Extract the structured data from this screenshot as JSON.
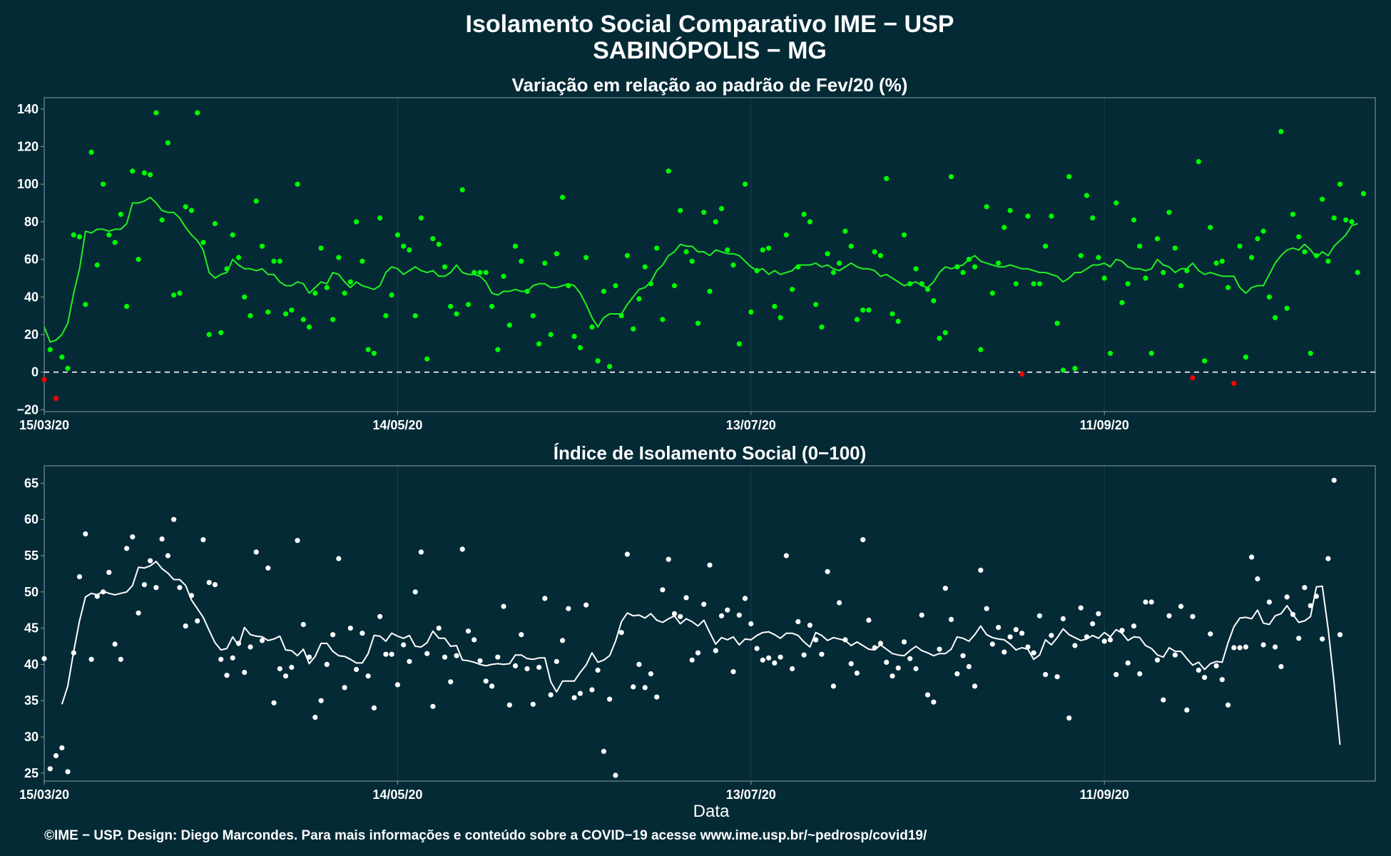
{
  "header": {
    "title_line1": "Isolamento Social Comparativo IME − USP",
    "title_line2": "SABINÓPOLIS − MG"
  },
  "footer": {
    "credit": "©IME − USP. Design: Diego Marcondes. Para mais informações e conteúdo sobre a COVID−19 acesse www.ime.usp.br/~pedrosp/covid19/"
  },
  "colors": {
    "background": "#042a36",
    "grid": "#143c48",
    "positive_points": "#00ff00",
    "negative_points": "#ff0000",
    "top_line": "#22ee22",
    "bottom_points": "#ffffff",
    "bottom_line": "#ffffff",
    "zero_line": "#ffffff"
  },
  "chart_data": [
    {
      "type": "scatter",
      "title": "Variação em relação ao padrão de Fev/20 (%)",
      "xlabel": "",
      "ylabel": "",
      "x_start_date": "15/03/20",
      "x_tick_labels": [
        "15/03/20",
        "14/05/20",
        "13/07/20",
        "11/09/20"
      ],
      "x_tick_days": [
        0,
        60,
        120,
        180
      ],
      "xlim_days": [
        0,
        226
      ],
      "y_ticks": [
        -20,
        0,
        20,
        40,
        60,
        80,
        100,
        120,
        140
      ],
      "ylim": [
        -21,
        146
      ],
      "reference_line": {
        "y": 0,
        "style": "dashed"
      },
      "grid": true,
      "series": [
        {
          "kind": "points",
          "values": [
            -4,
            12,
            -14,
            8,
            2,
            73,
            72,
            36,
            117,
            57,
            100,
            73,
            69,
            84,
            35,
            107,
            60,
            106,
            105,
            138,
            81,
            122,
            41,
            42,
            88,
            86,
            138,
            69,
            20,
            79,
            21,
            55,
            73,
            61,
            40,
            30,
            91,
            67,
            32,
            59,
            59,
            31,
            33,
            100,
            28,
            24,
            42,
            66,
            45,
            28,
            61,
            42,
            48,
            80,
            59,
            12,
            10,
            82,
            30,
            41,
            73,
            67,
            65,
            30,
            82,
            7,
            71,
            68,
            56,
            35,
            31,
            97,
            36,
            53,
            53,
            53,
            35,
            12,
            51,
            25,
            67,
            59,
            43,
            30,
            15,
            58,
            20,
            63,
            93,
            46,
            19,
            13,
            61,
            24,
            6,
            43,
            3,
            46,
            30,
            62,
            23,
            39,
            56,
            47,
            66,
            28,
            107,
            46,
            86,
            64,
            59,
            26,
            85,
            43,
            80,
            87,
            65,
            57,
            15,
            100,
            32,
            54,
            65,
            66,
            35,
            29,
            73,
            44,
            56,
            84,
            80,
            36,
            24,
            63,
            53,
            58,
            75,
            67,
            28,
            33,
            33,
            64,
            62,
            103,
            31,
            27,
            73,
            47,
            55,
            47,
            44,
            38,
            18,
            21,
            104,
            56,
            53,
            60,
            56,
            12,
            88,
            42,
            58,
            77,
            86,
            47,
            -1,
            83,
            47,
            47,
            67,
            83,
            26,
            1,
            104,
            2,
            62,
            94,
            82,
            61,
            50,
            10,
            90,
            37,
            47,
            81,
            67,
            50,
            10,
            71,
            53,
            85,
            66,
            46,
            54,
            -3,
            112,
            6,
            77,
            58,
            59,
            45,
            -6,
            67,
            8,
            61,
            71,
            75,
            40,
            29,
            128,
            34,
            84,
            72,
            64,
            10,
            62,
            92,
            59,
            82,
            100,
            81,
            80,
            53,
            95
          ]
        },
        {
          "kind": "line",
          "name": "",
          "values": [
            24,
            16,
            17,
            20,
            26,
            42,
            55,
            75,
            74,
            76,
            76,
            75,
            76,
            76,
            79,
            90,
            90,
            91,
            93,
            90,
            86,
            85,
            85,
            82,
            77,
            73,
            70,
            65,
            53,
            50,
            52,
            53,
            60,
            57,
            55,
            55,
            54,
            55,
            52,
            52,
            48,
            46,
            46,
            48,
            47,
            42,
            45,
            48,
            47,
            53,
            52,
            48,
            45,
            48,
            46,
            45,
            44,
            46,
            53,
            56,
            55,
            52,
            54,
            56,
            54,
            53,
            54,
            51,
            51,
            53,
            57,
            53,
            52,
            52,
            51,
            48,
            42,
            41,
            43,
            43,
            44,
            43,
            43,
            46,
            47,
            47,
            45,
            45,
            46,
            47,
            46,
            42,
            36,
            29,
            24,
            29,
            31,
            31,
            31,
            36,
            40,
            44,
            45,
            48,
            54,
            57,
            62,
            64,
            68,
            67,
            67,
            64,
            64,
            62,
            65,
            64,
            63,
            63,
            62,
            59,
            56,
            54,
            55,
            52,
            54,
            52,
            53,
            54,
            57,
            57,
            57,
            58,
            56,
            57,
            55,
            54,
            56,
            58,
            56,
            55,
            55,
            54,
            51,
            52,
            50,
            48,
            46,
            47,
            48,
            46,
            45,
            48,
            53,
            56,
            55,
            56,
            57,
            60,
            62,
            59,
            58,
            57,
            56,
            56,
            57,
            56,
            55,
            55,
            54,
            53,
            53,
            52,
            51,
            48,
            50,
            53,
            53,
            55,
            57,
            57,
            58,
            56,
            60,
            59,
            56,
            55,
            55,
            54,
            55,
            60,
            57,
            56,
            53,
            55,
            55,
            58,
            54,
            52,
            53,
            52,
            51,
            51,
            51,
            45,
            42,
            45,
            46,
            46,
            52,
            58,
            62,
            65,
            66,
            65,
            68,
            65,
            61,
            64,
            62,
            67,
            70,
            73,
            78,
            79
          ]
        }
      ]
    },
    {
      "type": "scatter",
      "title": "Índice de Isolamento Social (0−100)",
      "xlabel": "Data",
      "ylabel": "",
      "x_start_date": "15/03/20",
      "x_tick_labels": [
        "15/03/20",
        "14/05/20",
        "13/07/20",
        "11/09/20"
      ],
      "x_tick_days": [
        0,
        60,
        120,
        180
      ],
      "xlim_days": [
        0,
        226
      ],
      "y_ticks": [
        25,
        30,
        35,
        40,
        45,
        50,
        55,
        60,
        65
      ],
      "ylim": [
        23.9,
        67.4
      ],
      "grid": true,
      "series": [
        {
          "kind": "points",
          "values": [
            40.8,
            25.6,
            27.4,
            28.5,
            25.2,
            41.6,
            52.1,
            58.0,
            40.7,
            49.4,
            50.0,
            52.7,
            42.8,
            40.7,
            56.0,
            57.6,
            47.1,
            51.0,
            54.3,
            50.6,
            57.3,
            55.0,
            60.0,
            50.6,
            45.3,
            49.5,
            46.0,
            57.2,
            51.3,
            51.0,
            40.7,
            38.5,
            40.9,
            42.9,
            38.9,
            42.4,
            55.5,
            43.3,
            53.3,
            34.7,
            39.4,
            38.4,
            39.6,
            57.1,
            45.5,
            41.0,
            32.7,
            35.0,
            40.0,
            44.1,
            54.6,
            36.8,
            45.0,
            39.3,
            44.3,
            38.4,
            34.0,
            46.6,
            41.4,
            41.4,
            37.2,
            42.7,
            40.4,
            50.0,
            55.5,
            41.5,
            34.2,
            45.0,
            41.0,
            37.6,
            41.2,
            55.9,
            44.6,
            43.4,
            40.5,
            37.7,
            37.0,
            41.0,
            48.0,
            34.4,
            39.8,
            44.1,
            39.4,
            34.5,
            39.6,
            49.1,
            35.8,
            40.4,
            43.3,
            47.7,
            35.4,
            36.0,
            48.2,
            36.5,
            39.2,
            28.0,
            35.2,
            24.7,
            44.4,
            55.2,
            36.9,
            40.0,
            36.8,
            38.7,
            35.5,
            50.3,
            54.5,
            47.0,
            46.6,
            49.2,
            40.6,
            41.6,
            48.3,
            53.7,
            41.9,
            46.7,
            47.5,
            39.0,
            46.8,
            49.1,
            45.6,
            42.2,
            40.6,
            40.9,
            40.2,
            41.0,
            55.0,
            39.4,
            45.9,
            41.3,
            45.4,
            43.4,
            41.4,
            52.8,
            37.0,
            48.5,
            43.4,
            40.1,
            38.8,
            57.2,
            46.1,
            42.3,
            42.9,
            40.3,
            38.4,
            39.5,
            43.1,
            40.8,
            39.4,
            46.8,
            35.8,
            34.8,
            42.1,
            50.5,
            46.2,
            38.7,
            41.2,
            39.7,
            37.0,
            53.0,
            47.7,
            42.8,
            45.1,
            41.7,
            43.8,
            44.8,
            44.3,
            42.4,
            41.6,
            46.7,
            38.6,
            44.0,
            38.3,
            46.3,
            32.6,
            42.6,
            47.8,
            43.8,
            45.6,
            47.0,
            43.2,
            43.4,
            38.6,
            44.7,
            40.2,
            45.3,
            38.7,
            48.6,
            48.6,
            40.6,
            35.1,
            46.7,
            41.3,
            48.0,
            33.7,
            46.6,
            39.2,
            38.2,
            44.2,
            39.8,
            37.9,
            34.4,
            42.3,
            42.3,
            42.4,
            54.8,
            51.8,
            42.7,
            48.6,
            42.4,
            39.7,
            49.3,
            46.9,
            43.6,
            50.6,
            48.1,
            49.4,
            43.5,
            54.6,
            65.4,
            44.1
          ]
        },
        {
          "kind": "line",
          "name": "",
          "x_start_day": 3,
          "values": [
            34.5,
            37.0,
            41.8,
            46.0,
            49.3,
            49.8,
            49.6,
            50.1,
            49.8,
            49.6,
            49.8,
            50.0,
            50.9,
            53.4,
            53.3,
            53.6,
            54.2,
            53.2,
            52.6,
            51.7,
            51.7,
            50.9,
            48.9,
            47.7,
            46.5,
            44.7,
            43.0,
            42.0,
            42.2,
            43.8,
            42.6,
            45.1,
            44.1,
            43.9,
            43.8,
            43.3,
            43.5,
            43.9,
            42.0,
            41.9,
            41.2,
            42.1,
            40.1,
            41.1,
            42.9,
            42.9,
            41.8,
            41.2,
            41.1,
            40.7,
            40.2,
            40.2,
            41.5,
            44.0,
            43.9,
            43.2,
            44.3,
            43.9,
            43.6,
            44.0,
            42.5,
            42.4,
            43.0,
            44.6,
            43.6,
            43.6,
            42.5,
            42.6,
            40.6,
            40.5,
            40.3,
            40.0,
            39.8,
            40.0,
            40.1,
            40.0,
            40.1,
            41.3,
            41.3,
            40.8,
            40.7,
            40.9,
            40.9,
            37.6,
            36.2,
            37.7,
            37.7,
            37.7,
            38.9,
            39.9,
            41.6,
            40.3,
            40.6,
            41.2,
            43.2,
            45.9,
            47.1,
            46.7,
            46.8,
            46.4,
            47.0,
            46.1,
            45.8,
            46.3,
            46.7,
            45.6,
            46.3,
            45.9,
            45.3,
            46.1,
            44.4,
            42.8,
            43.7,
            43.4,
            43.8,
            42.7,
            43.5,
            43.4,
            44.0,
            44.4,
            44.5,
            44.1,
            43.6,
            44.3,
            44.3,
            44.0,
            43.1,
            42.4,
            44.4,
            44.0,
            43.3,
            43.7,
            43.5,
            43.3,
            42.6,
            43.1,
            42.6,
            42.1,
            42.0,
            42.7,
            42.1,
            41.5,
            41.3,
            41.2,
            41.9,
            42.5,
            41.9,
            41.6,
            41.2,
            41.5,
            41.5,
            42.1,
            43.8,
            43.6,
            43.2,
            44.1,
            45.3,
            44.1,
            43.7,
            43.5,
            43.4,
            42.8,
            42.0,
            42.3,
            42.1,
            40.7,
            41.3,
            43.4,
            42.7,
            43.7,
            44.9,
            44.1,
            43.7,
            43.3,
            43.5,
            44.0,
            43.6,
            44.4,
            43.8,
            44.8,
            44.3,
            43.3,
            43.8,
            43.7,
            42.6,
            42.2,
            41.3,
            41.0,
            42.3,
            41.8,
            41.8,
            40.8,
            39.9,
            40.3,
            39.3,
            40.1,
            40.4,
            40.3,
            43.0,
            45.2,
            46.4,
            46.5,
            46.3,
            47.5,
            45.7,
            45.5,
            46.7,
            47.0,
            48.1,
            46.9,
            45.8,
            46.0,
            46.6,
            50.7,
            50.8,
            44.9,
            37.5,
            28.9
          ]
        }
      ]
    }
  ]
}
